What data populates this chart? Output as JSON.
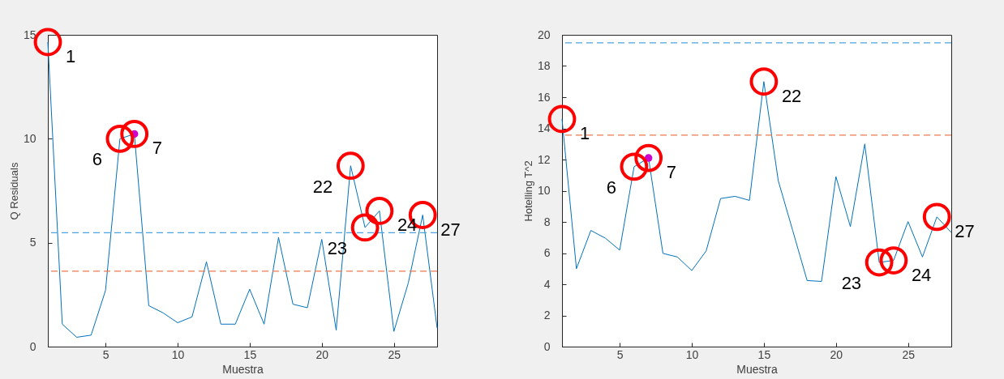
{
  "chart_data": [
    {
      "type": "line",
      "xlabel": "Muestra",
      "ylabel": "Q Residuals",
      "x": [
        1,
        2,
        3,
        4,
        5,
        6,
        7,
        8,
        9,
        10,
        11,
        12,
        13,
        14,
        15,
        16,
        17,
        18,
        19,
        20,
        21,
        22,
        23,
        24,
        25,
        26,
        27,
        28
      ],
      "series": [
        {
          "color": "#0072bd",
          "values": [
            14.65,
            1.08,
            0.45,
            0.55,
            2.7,
            10.0,
            10.23,
            1.97,
            1.62,
            1.15,
            1.43,
            4.08,
            1.08,
            1.08,
            2.76,
            1.08,
            5.25,
            2.04,
            1.87,
            5.16,
            0.79,
            8.7,
            5.73,
            6.53,
            0.73,
            3.06,
            6.33,
            0.89
          ]
        },
        {
          "type": "scatter",
          "color": "#cc00cc",
          "x": [
            7
          ],
          "values": [
            10.23
          ]
        }
      ],
      "xlim": [
        1,
        28
      ],
      "xticks": [
        5,
        10,
        15,
        20,
        25
      ],
      "ylim": [
        0,
        15
      ],
      "yticks": [
        0,
        5,
        10,
        15
      ],
      "grid": false,
      "ref_lines": [
        {
          "axis": "y",
          "value": 5.48,
          "color": "#4da3e0",
          "line_style": "dashed"
        },
        {
          "axis": "y",
          "value": 3.63,
          "color": "#ee7a50",
          "line_style": "dashed"
        }
      ],
      "annotations": [
        {
          "text": "1",
          "x": 1,
          "y": 14.65
        },
        {
          "text": "6",
          "x": 6,
          "y": 10.0
        },
        {
          "text": "7",
          "x": 7,
          "y": 10.23
        },
        {
          "text": "22",
          "x": 22,
          "y": 8.7
        },
        {
          "text": "23",
          "x": 23,
          "y": 5.73
        },
        {
          "text": "24",
          "x": 24,
          "y": 6.53
        },
        {
          "text": "27",
          "x": 27,
          "y": 6.33
        }
      ]
    },
    {
      "type": "line",
      "xlabel": "Muestra",
      "ylabel": "Hotelling T^2",
      "x": [
        1,
        2,
        3,
        4,
        5,
        6,
        7,
        8,
        9,
        10,
        11,
        12,
        13,
        14,
        15,
        16,
        17,
        18,
        19,
        20,
        21,
        22,
        23,
        24,
        25,
        26,
        27,
        28
      ],
      "series": [
        {
          "color": "#0072bd",
          "values": [
            14.6,
            5.0,
            7.45,
            6.96,
            6.19,
            11.54,
            12.1,
            5.98,
            5.75,
            4.88,
            6.14,
            9.5,
            9.64,
            9.38,
            17.0,
            10.64,
            7.45,
            4.24,
            4.18,
            10.9,
            7.7,
            13.0,
            5.4,
            5.53,
            8.02,
            5.75,
            8.32,
            7.32
          ]
        },
        {
          "type": "scatter",
          "color": "#cc00cc",
          "x": [
            7
          ],
          "values": [
            12.1
          ]
        }
      ],
      "xlim": [
        1,
        28
      ],
      "xticks": [
        5,
        10,
        15,
        20,
        25
      ],
      "ylim": [
        0,
        20
      ],
      "yticks": [
        0,
        2,
        4,
        6,
        8,
        10,
        12,
        14,
        16,
        18,
        20
      ],
      "grid": false,
      "ref_lines": [
        {
          "axis": "y",
          "value": 19.49,
          "color": "#4da3e0",
          "line_style": "dashed"
        },
        {
          "axis": "y",
          "value": 13.57,
          "color": "#ee7a50",
          "line_style": "dashed"
        }
      ],
      "annotations": [
        {
          "text": "1",
          "x": 1,
          "y": 14.6
        },
        {
          "text": "6",
          "x": 6,
          "y": 11.54
        },
        {
          "text": "7",
          "x": 7,
          "y": 12.1
        },
        {
          "text": "22",
          "x": 15,
          "y": 17.0
        },
        {
          "text": "23",
          "x": 23,
          "y": 5.4
        },
        {
          "text": "24",
          "x": 24,
          "y": 5.53
        },
        {
          "text": "27",
          "x": 27,
          "y": 8.32
        }
      ]
    }
  ]
}
